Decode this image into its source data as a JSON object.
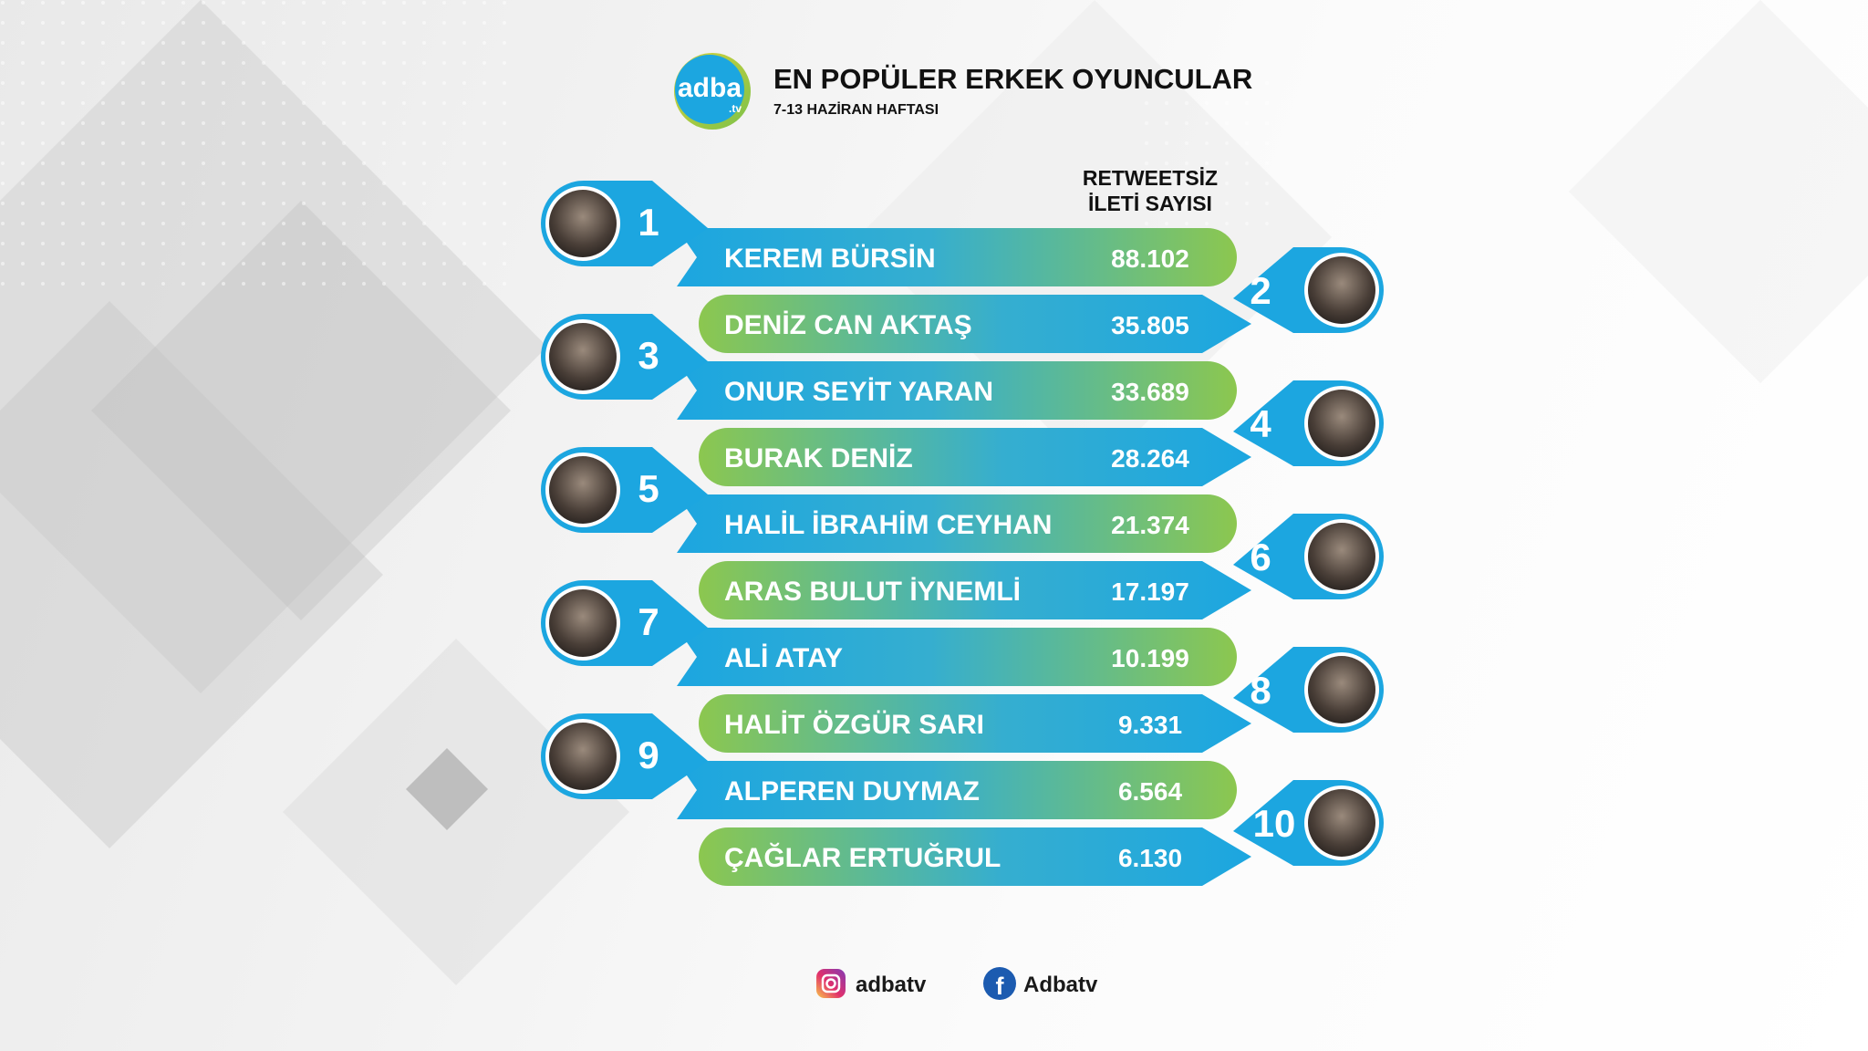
{
  "logo": {
    "main": "adba",
    "sub": ".tv"
  },
  "header": {
    "title": "EN POPÜLER ERKEK OYUNCULAR",
    "subtitle": "7-13 HAZİRAN HAFTASI"
  },
  "chart_data": {
    "type": "table",
    "value_header": [
      "RETWEETSİZ",
      "İLETİ SAYISI"
    ],
    "rows": [
      {
        "rank": "1",
        "name": "KEREM BÜRSİN",
        "value": 88102,
        "value_label": "88.102"
      },
      {
        "rank": "2",
        "name": "DENİZ CAN AKTAŞ",
        "value": 35805,
        "value_label": "35.805"
      },
      {
        "rank": "3",
        "name": "ONUR SEYİT YARAN",
        "value": 33689,
        "value_label": "33.689"
      },
      {
        "rank": "4",
        "name": "BURAK DENİZ",
        "value": 28264,
        "value_label": "28.264"
      },
      {
        "rank": "5",
        "name": "HALİL İBRAHİM CEYHAN",
        "value": 21374,
        "value_label": "21.374"
      },
      {
        "rank": "6",
        "name": "ARAS BULUT İYNEMLİ",
        "value": 17197,
        "value_label": "17.197"
      },
      {
        "rank": "7",
        "name": "ALİ ATAY",
        "value": 10199,
        "value_label": "10.199"
      },
      {
        "rank": "8",
        "name": "HALİT ÖZGÜR SARI",
        "value": 9331,
        "value_label": "9.331"
      },
      {
        "rank": "9",
        "name": "ALPEREN DUYMAZ",
        "value": 6564,
        "value_label": "6.564"
      },
      {
        "rank": "10",
        "name": "ÇAĞLAR ERTUĞRUL",
        "value": 6130,
        "value_label": "6.130"
      }
    ]
  },
  "social": {
    "instagram": {
      "icon": "instagram-icon",
      "label": "adbatv"
    },
    "facebook": {
      "icon": "facebook-icon",
      "label": "Adbatv"
    }
  },
  "colors": {
    "blue": "#1ca6e0",
    "green": "#8cc74f",
    "logo_ring_yellow": "#d9d23a",
    "logo_ring_green": "#7cc24a",
    "facebook_blue": "#1c5bb0"
  }
}
